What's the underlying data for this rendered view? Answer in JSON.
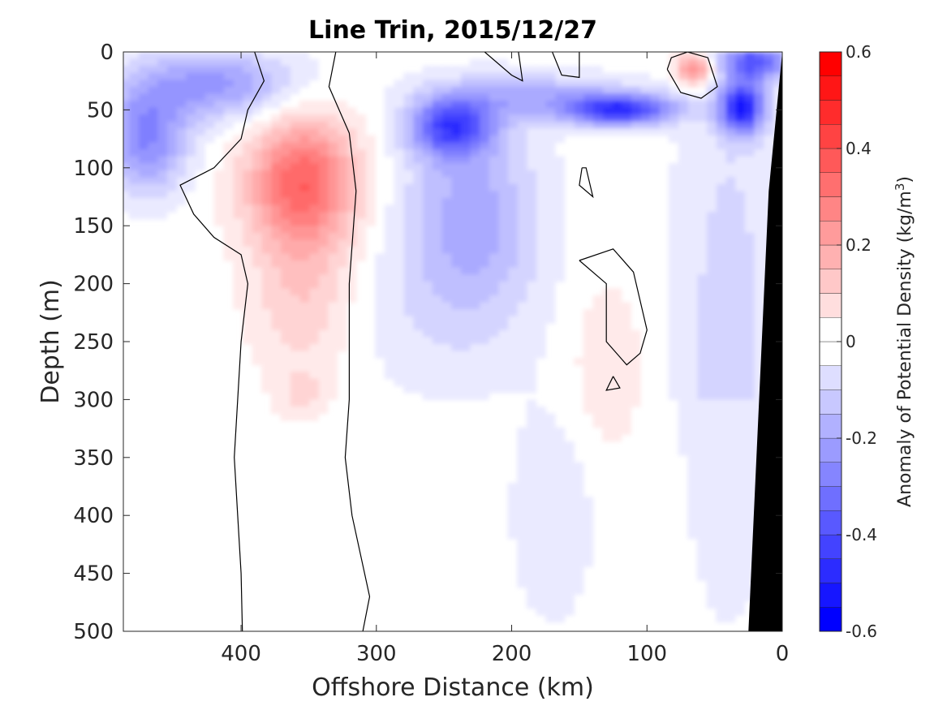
{
  "chart_data": {
    "type": "heatmap",
    "title": "Line Trin, 2015/12/27",
    "xlabel": "Offshore Distance (km)",
    "ylabel": "Depth (m)",
    "colorbar_label": "Anomaly of Potential Density (kg/m",
    "colorbar_label_sup": "3",
    "colorbar_label_end": ")",
    "x_axis": {
      "range": [
        0,
        487
      ],
      "reversed": true,
      "ticks": [
        400,
        300,
        200,
        100,
        0
      ],
      "tick_labels": [
        "400",
        "300",
        "200",
        "100",
        "0"
      ]
    },
    "y_axis": {
      "range": [
        0,
        500
      ],
      "reversed": true,
      "ticks": [
        0,
        50,
        100,
        150,
        200,
        250,
        300,
        350,
        400,
        450,
        500
      ],
      "tick_labels": [
        "0",
        "50",
        "100",
        "150",
        "200",
        "250",
        "300",
        "350",
        "400",
        "450",
        "500"
      ]
    },
    "colorbar": {
      "range": [
        -0.6,
        0.6
      ],
      "step": 0.05,
      "ticks": [
        0.6,
        0.4,
        0.2,
        0,
        -0.2,
        -0.4,
        -0.6
      ],
      "tick_labels": [
        "0.6",
        "0.4",
        "0.2",
        "0",
        "-0.2",
        "-0.4",
        "-0.6"
      ]
    },
    "features": [
      {
        "kind": "positive-anomaly",
        "x_km": 355,
        "depth_m": 110,
        "peak": 0.35
      },
      {
        "kind": "positive-anomaly",
        "x_km": 65,
        "depth_m": 15,
        "peak": 0.3
      },
      {
        "kind": "negative-anomaly",
        "x_km": 120,
        "depth_m": 50,
        "peak": -0.45
      },
      {
        "kind": "negative-anomaly",
        "x_km": 245,
        "depth_m": 65,
        "peak": -0.4
      },
      {
        "kind": "negative-anomaly",
        "x_km": 30,
        "depth_m": 50,
        "peak": -0.5
      },
      {
        "kind": "negative-anomaly",
        "x_km": 475,
        "depth_m": 80,
        "peak": -0.3
      }
    ],
    "zero_contour": true,
    "bathymetry_color": "#000000"
  },
  "colors": {
    "negative_max": "#0000ff",
    "positive_max": "#ff0000",
    "neutral": "#ffffff"
  }
}
